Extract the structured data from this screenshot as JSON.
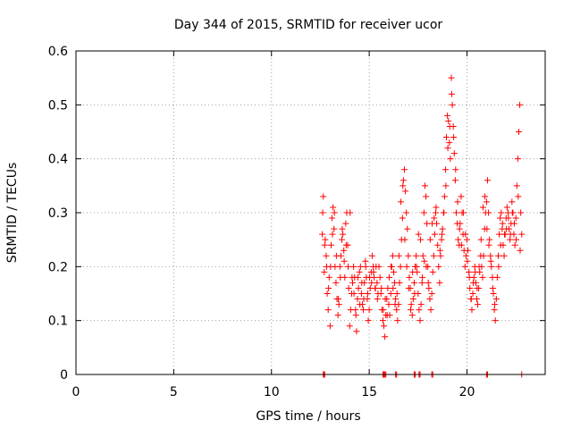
{
  "chart_data": {
    "type": "scatter",
    "title": "Day 344 of 2015, SRMTID for receiver ucor",
    "xlabel": "GPS time / hours",
    "ylabel": "SRMTID / TECUs",
    "xlim": [
      0,
      24
    ],
    "ylim": [
      0,
      0.6
    ],
    "xticks": [
      0,
      5,
      10,
      15,
      20
    ],
    "xtick_labels": [
      "0",
      "5",
      "10",
      "15",
      "20"
    ],
    "yticks": [
      0,
      0.1,
      0.2,
      0.3,
      0.4,
      0.5,
      0.6
    ],
    "ytick_labels": [
      "0",
      "0.1",
      "0.2",
      "0.3",
      "0.4",
      "0.5",
      "0.6"
    ],
    "grid": true,
    "marker": "+",
    "series": [
      {
        "name": "SRMTID",
        "color": "#ff0000",
        "x": [
          12.6,
          12.65,
          12.7,
          12.75,
          12.8,
          12.85,
          12.9,
          12.95,
          13.0,
          13.05,
          13.1,
          13.15,
          13.2,
          13.25,
          13.3,
          13.35,
          13.4,
          13.45,
          13.5,
          13.55,
          13.6,
          13.65,
          13.7,
          13.75,
          13.8,
          13.85,
          13.9,
          13.95,
          14.0,
          14.05,
          14.1,
          14.15,
          14.2,
          14.25,
          14.3,
          14.35,
          14.4,
          14.45,
          14.5,
          14.55,
          14.6,
          14.65,
          14.7,
          14.75,
          14.8,
          14.85,
          14.9,
          14.95,
          15.0,
          15.05,
          15.1,
          15.15,
          15.2,
          15.25,
          15.3,
          15.35,
          15.4,
          15.45,
          15.5,
          15.55,
          15.6,
          15.65,
          15.7,
          15.75,
          15.8,
          15.85,
          15.9,
          15.95,
          16.0,
          16.05,
          16.1,
          16.15,
          16.2,
          16.25,
          16.3,
          16.35,
          16.4,
          16.45,
          16.5,
          16.55,
          16.6,
          16.65,
          16.7,
          16.75,
          16.8,
          16.85,
          16.9,
          16.95,
          17.0,
          17.05,
          17.1,
          17.15,
          17.2,
          17.25,
          17.3,
          17.35,
          17.4,
          17.45,
          17.5,
          17.55,
          17.6,
          17.65,
          17.7,
          17.75,
          17.8,
          17.85,
          17.9,
          17.95,
          18.0,
          18.05,
          18.1,
          18.15,
          18.2,
          18.25,
          18.3,
          18.35,
          18.4,
          18.45,
          18.5,
          18.55,
          18.6,
          18.65,
          18.7,
          18.75,
          18.8,
          18.85,
          18.9,
          18.95,
          19.0,
          19.05,
          19.1,
          19.15,
          19.2,
          19.25,
          19.3,
          19.35,
          19.4,
          19.45,
          19.5,
          19.55,
          19.6,
          19.65,
          19.7,
          19.75,
          19.8,
          19.85,
          19.9,
          19.95,
          20.0,
          20.05,
          20.1,
          20.15,
          20.2,
          20.25,
          20.3,
          20.35,
          20.4,
          20.45,
          20.5,
          20.55,
          20.6,
          20.65,
          20.7,
          20.75,
          20.8,
          20.85,
          20.9,
          20.95,
          21.0,
          21.05,
          21.1,
          21.15,
          21.2,
          21.25,
          21.3,
          21.35,
          21.4,
          21.45,
          21.5,
          21.55,
          21.6,
          21.65,
          21.7,
          21.75,
          21.8,
          21.85,
          21.9,
          21.95,
          22.0,
          22.05,
          22.1,
          22.15,
          22.2,
          22.25,
          22.3,
          22.35,
          22.4,
          22.45,
          22.5,
          22.55,
          22.6,
          22.65,
          22.7,
          22.75,
          22.8,
          12.62,
          12.72,
          12.82,
          12.92,
          13.02,
          13.12,
          13.22,
          13.32,
          13.42,
          13.52,
          13.62,
          13.72,
          13.82,
          13.92,
          14.02,
          14.12,
          14.22,
          14.32,
          14.42,
          14.52,
          14.62,
          14.72,
          14.82,
          14.92,
          15.02,
          15.12,
          15.22,
          15.32,
          15.42,
          15.62,
          15.72,
          15.82,
          15.92,
          16.02,
          16.12,
          16.22,
          16.32,
          16.42,
          16.52,
          16.62,
          16.72,
          16.82,
          16.92,
          17.02,
          17.12,
          17.22,
          17.32,
          17.42,
          17.52,
          17.62,
          17.72,
          17.82,
          17.92,
          18.02,
          18.12,
          18.22,
          18.32,
          18.42,
          18.62,
          18.72,
          18.82,
          18.92,
          19.02,
          19.12,
          19.22,
          19.32,
          19.42,
          19.52,
          19.62,
          19.72,
          19.82,
          19.92,
          20.02,
          20.12,
          20.22,
          20.32,
          20.42,
          20.52,
          20.62,
          20.72,
          20.82,
          20.92,
          21.02,
          21.12,
          21.22,
          21.32,
          21.42,
          21.62,
          21.72,
          21.82,
          21.92,
          22.02,
          22.12,
          22.22,
          22.32,
          22.42,
          22.52,
          22.62,
          22.72,
          12.65,
          12.68,
          12.7,
          12.72,
          15.7,
          15.75,
          15.8,
          15.85,
          16.35,
          16.4,
          17.3,
          17.35,
          17.55,
          17.6,
          18.2,
          18.25,
          21.0,
          21.05,
          22.8
        ],
        "y": [
          0.26,
          0.33,
          0.19,
          0.25,
          0.22,
          0.15,
          0.12,
          0.18,
          0.09,
          0.24,
          0.29,
          0.31,
          0.27,
          0.2,
          0.17,
          0.14,
          0.11,
          0.13,
          0.2,
          0.22,
          0.25,
          0.26,
          0.23,
          0.18,
          0.28,
          0.3,
          0.24,
          0.16,
          0.09,
          0.12,
          0.15,
          0.17,
          0.2,
          0.18,
          0.12,
          0.08,
          0.14,
          0.16,
          0.19,
          0.2,
          0.15,
          0.13,
          0.12,
          0.17,
          0.21,
          0.18,
          0.14,
          0.1,
          0.12,
          0.16,
          0.19,
          0.22,
          0.2,
          0.18,
          0.16,
          0.2,
          0.17,
          0.15,
          0.2,
          0.18,
          0.15,
          0.12,
          0.1,
          0.09,
          0.07,
          0.11,
          0.14,
          0.16,
          0.13,
          0.11,
          0.15,
          0.2,
          0.22,
          0.19,
          0.17,
          0.14,
          0.12,
          0.1,
          0.13,
          0.17,
          0.2,
          0.25,
          0.29,
          0.36,
          0.38,
          0.34,
          0.3,
          0.27,
          0.22,
          0.18,
          0.16,
          0.13,
          0.11,
          0.14,
          0.17,
          0.2,
          0.22,
          0.19,
          0.15,
          0.12,
          0.1,
          0.13,
          0.17,
          0.22,
          0.3,
          0.35,
          0.33,
          0.28,
          0.2,
          0.16,
          0.14,
          0.12,
          0.15,
          0.19,
          0.22,
          0.26,
          0.3,
          0.28,
          0.24,
          0.2,
          0.17,
          0.22,
          0.25,
          0.27,
          0.3,
          0.33,
          0.38,
          0.44,
          0.48,
          0.47,
          0.43,
          0.4,
          0.55,
          0.5,
          0.46,
          0.41,
          0.36,
          0.3,
          0.28,
          0.25,
          0.24,
          0.28,
          0.33,
          0.3,
          0.26,
          0.23,
          0.2,
          0.22,
          0.25,
          0.23,
          0.19,
          0.16,
          0.14,
          0.12,
          0.15,
          0.18,
          0.2,
          0.17,
          0.14,
          0.13,
          0.16,
          0.19,
          0.22,
          0.2,
          0.18,
          0.22,
          0.27,
          0.3,
          0.32,
          0.36,
          0.3,
          0.25,
          0.22,
          0.2,
          0.18,
          0.15,
          0.12,
          0.1,
          0.14,
          0.18,
          0.22,
          0.26,
          0.29,
          0.3,
          0.27,
          0.24,
          0.22,
          0.26,
          0.29,
          0.31,
          0.3,
          0.27,
          0.25,
          0.28,
          0.32,
          0.3,
          0.26,
          0.24,
          0.29,
          0.35,
          0.4,
          0.45,
          0.5,
          0.3,
          0.26,
          0.3,
          0.24,
          0.2,
          0.16,
          0.2,
          0.26,
          0.3,
          0.22,
          0.14,
          0.18,
          0.27,
          0.21,
          0.24,
          0.2,
          0.3,
          0.18,
          0.15,
          0.11,
          0.18,
          0.13,
          0.17,
          0.14,
          0.2,
          0.15,
          0.18,
          0.17,
          0.19,
          0.16,
          0.14,
          0.16,
          0.12,
          0.14,
          0.11,
          0.18,
          0.2,
          0.16,
          0.13,
          0.15,
          0.22,
          0.32,
          0.35,
          0.25,
          0.2,
          0.16,
          0.12,
          0.19,
          0.15,
          0.2,
          0.26,
          0.25,
          0.18,
          0.21,
          0.2,
          0.17,
          0.25,
          0.28,
          0.29,
          0.31,
          0.23,
          0.26,
          0.3,
          0.35,
          0.42,
          0.46,
          0.52,
          0.44,
          0.38,
          0.32,
          0.27,
          0.24,
          0.3,
          0.26,
          0.21,
          0.18,
          0.14,
          0.17,
          0.19,
          0.16,
          0.2,
          0.25,
          0.31,
          0.33,
          0.27,
          0.24,
          0.21,
          0.16,
          0.13,
          0.2,
          0.24,
          0.28,
          0.26,
          0.27,
          0.29,
          0.26,
          0.3,
          0.28,
          0.25,
          0.33,
          0.23,
          0,
          0,
          0,
          0,
          0,
          0,
          0,
          0,
          0,
          0,
          0,
          0,
          0,
          0,
          0,
          0,
          0,
          0,
          0
        ]
      }
    ]
  }
}
